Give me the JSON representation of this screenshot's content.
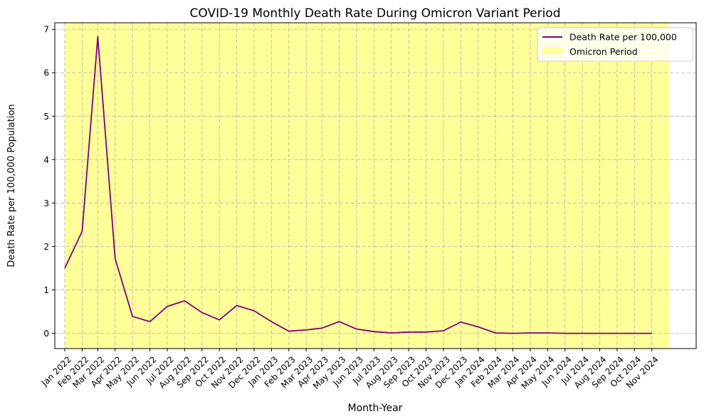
{
  "chart_data": {
    "type": "line",
    "title": "COVID-19 Monthly Death Rate During Omicron Variant Period",
    "xlabel": "Month-Year",
    "ylabel": "Death Rate per 100,000 Population",
    "ylim": [
      -0.35,
      7.15
    ],
    "yticks": [
      0,
      1,
      2,
      3,
      4,
      5,
      6,
      7
    ],
    "grid": true,
    "legend_position": "top-right",
    "categories": [
      "Jan 2022",
      "Feb 2022",
      "Mar 2022",
      "Apr 2022",
      "May 2022",
      "Jun 2022",
      "Jul 2022",
      "Aug 2022",
      "Sep 2022",
      "Oct 2022",
      "Nov 2022",
      "Dec 2022",
      "Jan 2023",
      "Feb 2023",
      "Mar 2023",
      "Apr 2023",
      "May 2023",
      "Jun 2023",
      "Jul 2023",
      "Aug 2023",
      "Sep 2023",
      "Oct 2023",
      "Nov 2023",
      "Dec 2023",
      "Jan 2024",
      "Feb 2024",
      "Mar 2024",
      "Apr 2024",
      "May 2024",
      "Jun 2024",
      "Jul 2024",
      "Aug 2024",
      "Sep 2024",
      "Oct 2024",
      "Nov 2024"
    ],
    "x_values": [
      0.0,
      1.0,
      1.9,
      2.9,
      3.9,
      4.9,
      5.9,
      6.9,
      7.9,
      8.9,
      9.9,
      10.9,
      11.9,
      12.9,
      13.9,
      14.8,
      15.8,
      16.8,
      17.8,
      18.8,
      19.8,
      20.8,
      21.8,
      22.8,
      23.8,
      24.8,
      25.8,
      26.8,
      27.8,
      28.8,
      29.8,
      30.8,
      31.8,
      32.8,
      33.8
    ],
    "series": [
      {
        "name": "Death Rate per 100,000",
        "color": "#800080",
        "values": [
          1.5,
          2.35,
          6.83,
          1.72,
          0.39,
          0.27,
          0.62,
          0.75,
          0.48,
          0.31,
          0.64,
          0.52,
          0.27,
          0.05,
          0.08,
          0.12,
          0.27,
          0.1,
          0.04,
          0.01,
          0.03,
          0.03,
          0.06,
          0.26,
          0.15,
          0.01,
          0.0,
          0.01,
          0.01,
          0.0,
          0.0,
          0.0,
          0.0,
          0.0,
          0.0
        ]
      }
    ],
    "shaded_region": {
      "label": "Omicron Period",
      "x_start": 0.0,
      "x_end": 34.8,
      "color": "#ffff99"
    }
  }
}
